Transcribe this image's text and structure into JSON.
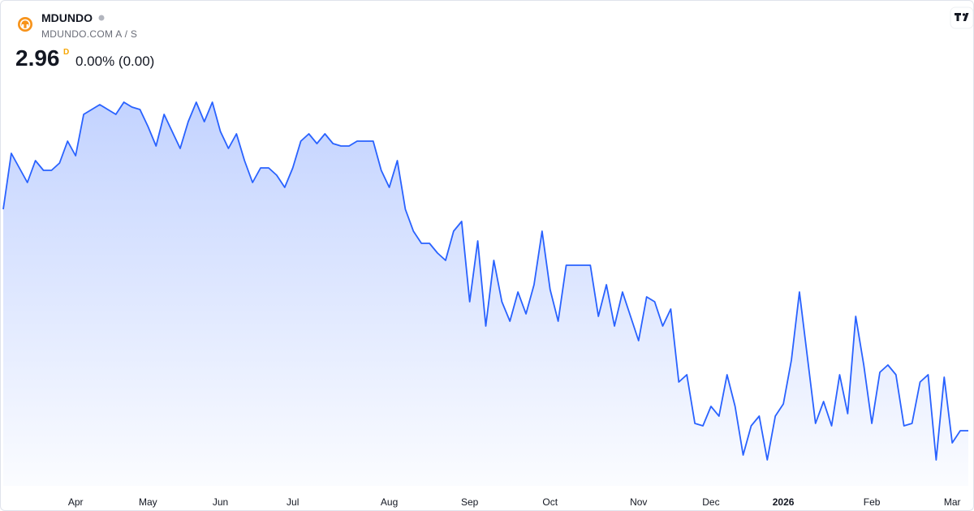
{
  "chart_data": {
    "type": "line",
    "title": "MDUNDO",
    "subtitle": "MDUNDO.COM A / S",
    "last_price": 2.96,
    "interval": "D",
    "change": "0.00% (0.00)",
    "color": "#2962ff",
    "ylim": [
      2.72,
      4.52
    ],
    "categories": [
      null,
      null,
      null,
      null,
      null,
      null,
      null,
      null,
      null,
      "Apr",
      null,
      null,
      null,
      null,
      null,
      null,
      null,
      null,
      "May",
      null,
      null,
      null,
      null,
      null,
      null,
      null,
      null,
      "Jun",
      null,
      null,
      null,
      null,
      null,
      null,
      null,
      null,
      "Jul",
      null,
      null,
      null,
      null,
      null,
      null,
      null,
      null,
      null,
      null,
      null,
      "Aug",
      null,
      null,
      null,
      null,
      null,
      null,
      null,
      null,
      null,
      "Sep",
      null,
      null,
      null,
      null,
      null,
      null,
      null,
      null,
      null,
      "Oct",
      null,
      null,
      null,
      null,
      null,
      null,
      null,
      null,
      null,
      null,
      "Nov",
      null,
      null,
      null,
      null,
      null,
      null,
      null,
      null,
      "Dec",
      null,
      null,
      null,
      null,
      null,
      null,
      null,
      null,
      "2026",
      null,
      null,
      null,
      null,
      null,
      null,
      null,
      null,
      null,
      null,
      "Feb",
      null,
      null,
      null,
      null,
      null,
      null,
      null,
      null,
      null,
      "Mar",
      null,
      null
    ],
    "values": [
      3.87,
      4.1,
      4.04,
      3.98,
      4.07,
      4.03,
      4.03,
      4.06,
      4.15,
      4.09,
      4.26,
      4.28,
      4.3,
      4.28,
      4.26,
      4.31,
      4.29,
      4.28,
      4.21,
      4.13,
      4.26,
      4.19,
      4.12,
      4.23,
      4.31,
      4.23,
      4.31,
      4.19,
      4.12,
      4.18,
      4.07,
      3.98,
      4.04,
      4.04,
      4.01,
      3.96,
      4.04,
      4.15,
      4.18,
      4.14,
      4.18,
      4.14,
      4.13,
      4.13,
      4.15,
      4.15,
      4.15,
      4.03,
      3.96,
      4.07,
      3.87,
      3.78,
      3.73,
      3.73,
      3.69,
      3.66,
      3.78,
      3.82,
      3.49,
      3.74,
      3.39,
      3.66,
      3.49,
      3.41,
      3.53,
      3.44,
      3.56,
      3.78,
      3.54,
      3.41,
      3.64,
      3.64,
      3.64,
      3.64,
      3.43,
      3.56,
      3.39,
      3.53,
      3.43,
      3.33,
      3.51,
      3.49,
      3.39,
      3.46,
      3.16,
      3.19,
      2.99,
      2.98,
      3.06,
      3.02,
      3.19,
      3.06,
      2.86,
      2.98,
      3.02,
      2.84,
      3.02,
      3.07,
      3.25,
      3.53,
      3.26,
      2.99,
      3.08,
      2.98,
      3.19,
      3.03,
      3.43,
      3.23,
      2.99,
      3.2,
      3.23,
      3.19,
      2.98,
      2.99,
      3.16,
      3.19,
      2.84,
      3.18,
      2.91,
      2.96,
      2.96
    ]
  }
}
